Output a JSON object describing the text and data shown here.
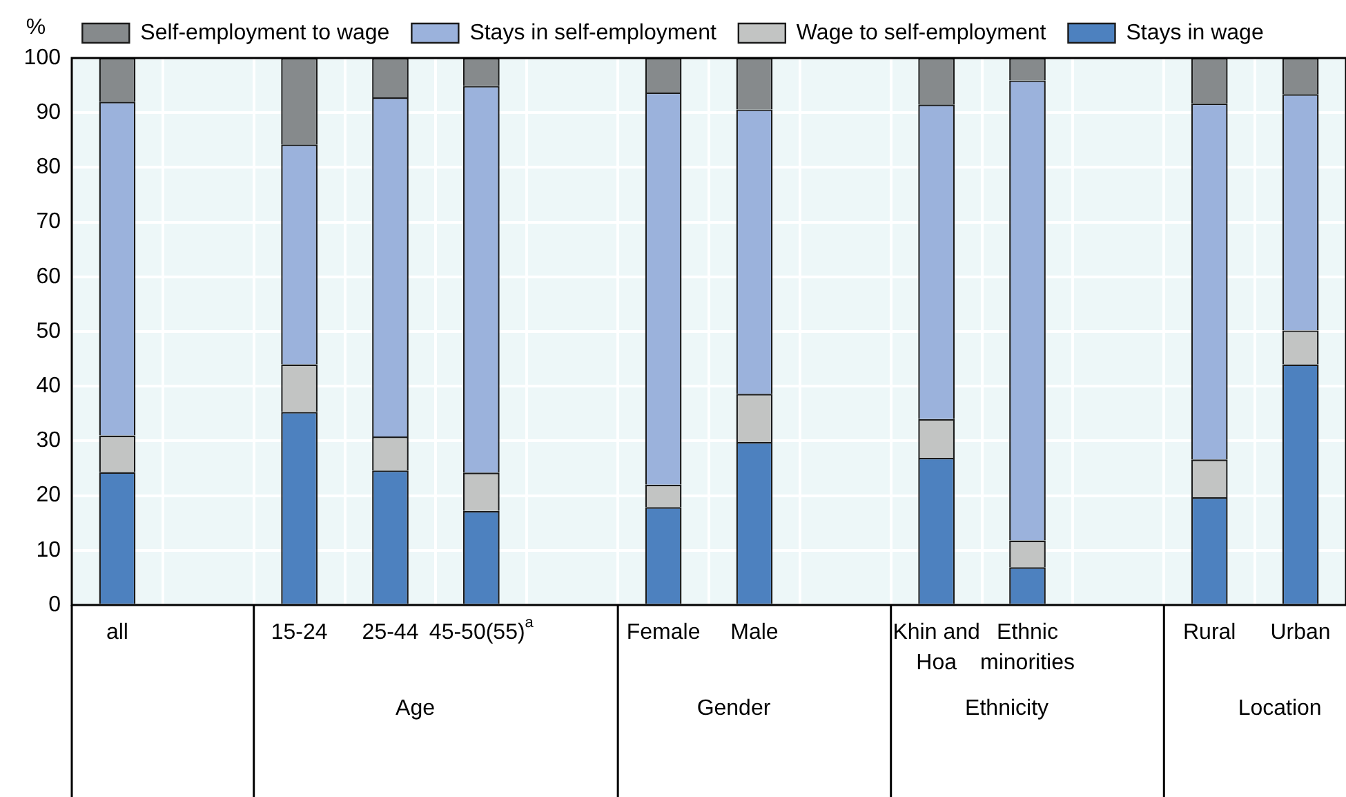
{
  "chart_data": {
    "type": "bar",
    "stacked": true,
    "ylabel": "%",
    "categories": [
      "all",
      null,
      "15-24",
      "25-44",
      "45-50(55)$^{a}$",
      null,
      "Female",
      "Male",
      null,
      "Khin and Hoa",
      "Ethnic minorities",
      null,
      "Rural",
      "Urban"
    ],
    "series": [
      {
        "name": "Stays in wage",
        "color": "#4d81bf",
        "values": [
          24.3,
          null,
          35.3,
          24.6,
          17.2,
          null,
          17.9,
          29.8,
          null,
          26.9,
          6.9,
          null,
          19.7,
          44.0
        ]
      },
      {
        "name": "Wage to self-employment",
        "color": "#c2c4c3",
        "values": [
          6.7,
          null,
          8.7,
          6.2,
          7.0,
          null,
          4.1,
          8.8,
          null,
          7.1,
          4.9,
          null,
          6.9,
          6.2
        ]
      },
      {
        "name": "Stays in self-employment",
        "color": "#9bb2dc",
        "values": [
          61.0,
          null,
          40.2,
          62.0,
          70.7,
          null,
          71.7,
          52.0,
          null,
          57.5,
          84.1,
          null,
          65.1,
          43.2
        ]
      },
      {
        "name": "Self-employment to wage",
        "color": "#868a8c",
        "values": [
          8.0,
          null,
          15.8,
          7.2,
          5.1,
          null,
          6.3,
          9.4,
          null,
          8.5,
          4.1,
          null,
          8.3,
          6.6
        ]
      }
    ],
    "ylim": [
      0,
      100
    ],
    "yticks": [
      0,
      10,
      20,
      30,
      40,
      50,
      60,
      70,
      80,
      90,
      100
    ],
    "grid": true,
    "legend": "top",
    "annotations": [
      "Age",
      "Gender",
      "Ethnicity",
      "Location"
    ]
  }
}
